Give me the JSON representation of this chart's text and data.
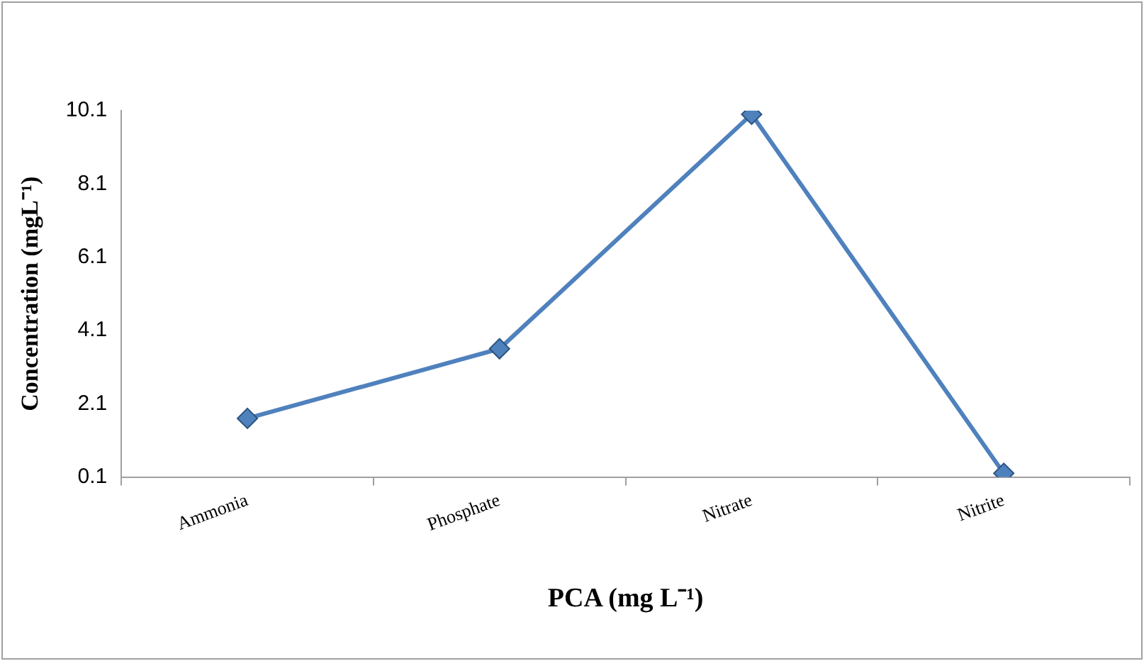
{
  "chart_data": {
    "type": "line",
    "xlabel": "PCA (mg L⁻¹)",
    "ylabel": "Concentration (mgL⁻¹)",
    "categories": [
      "Ammonia",
      "Phosphate",
      "Nitrate",
      "Nitrite"
    ],
    "series": [
      {
        "color": "#4f81bd",
        "values": [
          1.7,
          3.6,
          10.0,
          0.2
        ]
      }
    ],
    "ylim": [
      0.1,
      10.1
    ],
    "yticks": [
      0.1,
      2.1,
      4.1,
      6.1,
      8.1,
      10.1
    ],
    "marker": "diamond",
    "line_style": "solid"
  }
}
